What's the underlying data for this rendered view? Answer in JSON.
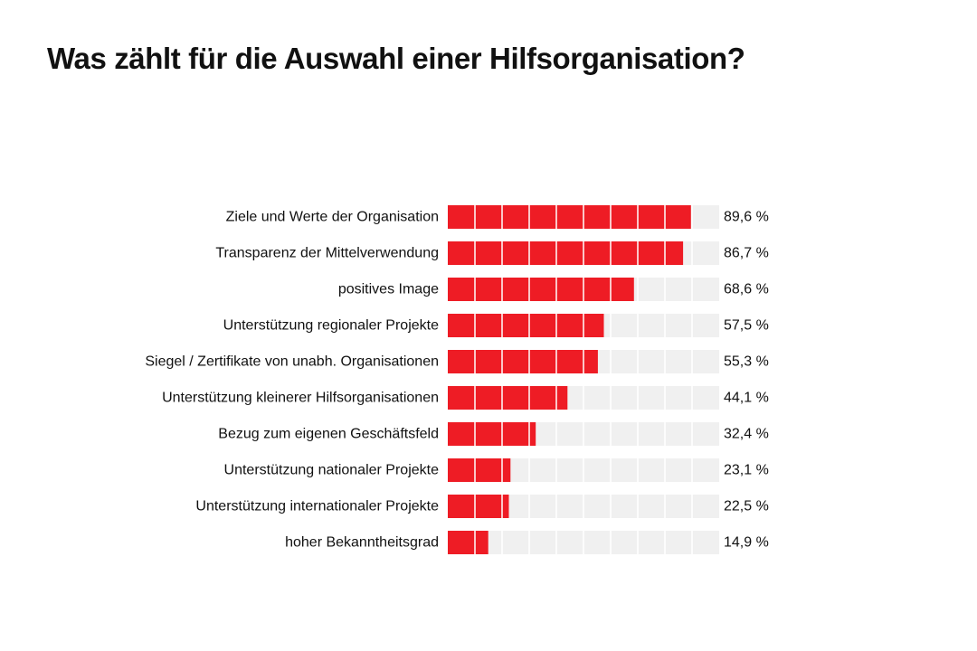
{
  "title": "Was zählt für die Auswahl einer Hilfsorganisation?",
  "colors": {
    "bar": "#ee1c25",
    "track": "#f0f0f0",
    "segment_divider": "#ffffff",
    "text": "#111111"
  },
  "chart_data": {
    "type": "bar",
    "orientation": "horizontal",
    "title": "Was zählt für die Auswahl einer Hilfsorganisation?",
    "xlim": [
      0,
      100
    ],
    "segment_step": 10,
    "unit": "%",
    "categories": [
      "Ziele und Werte der Organisation",
      "Transparenz der Mittelverwendung",
      "positives Image",
      "Unterstützung regionaler Projekte",
      "Siegel / Zertifikate von unabh. Organisationen",
      "Unterstützung kleinerer Hilfsorganisationen",
      "Bezug zum eigenen Geschäftsfeld",
      "Unterstützung nationaler Projekte",
      "Unterstützung internationaler Projekte",
      "hoher Bekanntheitsgrad"
    ],
    "values": [
      89.6,
      86.7,
      68.6,
      57.5,
      55.3,
      44.1,
      32.4,
      23.1,
      22.5,
      14.9
    ],
    "value_labels": [
      "89,6 %",
      "86,7 %",
      "68,6 %",
      "57,5 %",
      "55,3 %",
      "44,1 %",
      "32,4 %",
      "23,1 %",
      "22,5 %",
      "14,9 %"
    ]
  }
}
